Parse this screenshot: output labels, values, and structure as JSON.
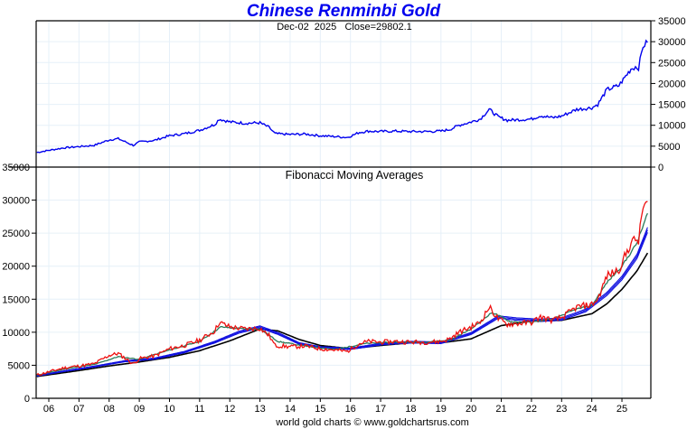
{
  "title": "Chinese Renminbi Gold",
  "footer": "world gold charts © www.goldchartsrus.com",
  "colors": {
    "title": "#0000ee",
    "price_upper": "#0000ee",
    "price_lower": "#ee1111",
    "fma_short": "#2a7a5a",
    "fma_mid": "#1010e0",
    "fma_long": "#000000",
    "grid": "#e6f0f8"
  },
  "chart_data": [
    {
      "type": "line",
      "panel": "upper",
      "subtitle": "Dec-02  2025   Close=29802.1",
      "date_label": "Dec-02  2025",
      "close_label": "Close=29802.1",
      "ylim": [
        0,
        35000
      ],
      "yticks": [
        "0",
        "5000",
        "10000",
        "15000",
        "20000",
        "25000",
        "30000",
        "35000"
      ],
      "yaxis_side": "right",
      "grid": true,
      "series": [
        {
          "name": "Close",
          "x": [
            2005.6,
            2006.0,
            2006.5,
            2007.0,
            2007.5,
            2008.0,
            2008.3,
            2008.8,
            2009.0,
            2009.5,
            2010.0,
            2010.5,
            2011.0,
            2011.5,
            2011.65,
            2012.0,
            2012.5,
            2013.0,
            2013.3,
            2013.5,
            2014.0,
            2014.5,
            2015.0,
            2015.5,
            2015.9,
            2016.3,
            2016.6,
            2017.0,
            2017.5,
            2018.0,
            2018.5,
            2019.0,
            2019.3,
            2019.6,
            2020.0,
            2020.3,
            2020.6,
            2020.9,
            2021.2,
            2021.5,
            2022.0,
            2022.3,
            2022.7,
            2023.0,
            2023.5,
            2024.0,
            2024.2,
            2024.5,
            2024.9,
            2025.0,
            2025.3,
            2025.45,
            2025.55,
            2025.7,
            2025.85
          ],
          "values": [
            3500,
            4000,
            4600,
            4900,
            5200,
            6500,
            6800,
            5200,
            6000,
            6400,
            7500,
            8000,
            8800,
            10200,
            11500,
            10800,
            10500,
            10600,
            9500,
            8000,
            7800,
            7900,
            7500,
            7300,
            7100,
            8300,
            8600,
            8500,
            8600,
            8500,
            8500,
            8600,
            9000,
            10000,
            10800,
            11500,
            13800,
            12000,
            11200,
            11300,
            11500,
            12300,
            11800,
            12200,
            13800,
            14200,
            15000,
            18500,
            19500,
            20500,
            23500,
            24000,
            23800,
            29000,
            29802.1
          ]
        }
      ]
    },
    {
      "type": "line",
      "panel": "lower",
      "title": "Fibonacci Moving Averages",
      "xlabel": "",
      "ylabel": "",
      "ylim": [
        0,
        35000
      ],
      "yticks": [
        "0",
        "5000",
        "10000",
        "15000",
        "20000",
        "25000",
        "30000",
        "35000"
      ],
      "yaxis_side": "left",
      "xticks": [
        "06",
        "07",
        "08",
        "09",
        "10",
        "11",
        "12",
        "13",
        "14",
        "15",
        "16",
        "17",
        "18",
        "19",
        "20",
        "21",
        "22",
        "23",
        "24",
        "25"
      ],
      "xlim": [
        2005.6,
        2025.95
      ],
      "grid": true,
      "series": [
        {
          "name": "Price",
          "x": [
            2005.6,
            2006.0,
            2006.5,
            2007.0,
            2007.5,
            2008.0,
            2008.3,
            2008.8,
            2009.0,
            2009.5,
            2010.0,
            2010.5,
            2011.0,
            2011.5,
            2011.65,
            2012.0,
            2012.5,
            2013.0,
            2013.3,
            2013.5,
            2014.0,
            2014.5,
            2015.0,
            2015.5,
            2015.9,
            2016.3,
            2016.6,
            2017.0,
            2017.5,
            2018.0,
            2018.5,
            2019.0,
            2019.3,
            2019.6,
            2020.0,
            2020.3,
            2020.6,
            2020.9,
            2021.2,
            2021.5,
            2022.0,
            2022.3,
            2022.7,
            2023.0,
            2023.5,
            2024.0,
            2024.2,
            2024.5,
            2024.9,
            2025.0,
            2025.3,
            2025.45,
            2025.55,
            2025.7,
            2025.85
          ],
          "values": [
            3500,
            4000,
            4600,
            4900,
            5200,
            6500,
            6800,
            5200,
            6000,
            6400,
            7500,
            8000,
            8800,
            10200,
            11500,
            10800,
            10500,
            10600,
            9500,
            8000,
            7800,
            7900,
            7500,
            7300,
            7100,
            8300,
            8600,
            8500,
            8600,
            8500,
            8500,
            8600,
            9000,
            10000,
            10800,
            11500,
            13800,
            12000,
            11200,
            11300,
            11500,
            12300,
            11800,
            12200,
            13800,
            14200,
            15000,
            18500,
            19500,
            20500,
            23500,
            24000,
            23800,
            29000,
            29802.1
          ]
        },
        {
          "name": "FMA short",
          "x": [
            2005.6,
            2006.5,
            2007.5,
            2008.3,
            2009.0,
            2010.0,
            2011.0,
            2011.7,
            2012.5,
            2013.0,
            2013.6,
            2014.5,
            2015.5,
            2016.5,
            2017.5,
            2018.5,
            2019.3,
            2020.0,
            2020.7,
            2021.3,
            2022.0,
            2022.7,
            2023.5,
            2024.0,
            2024.5,
            2025.0,
            2025.5,
            2025.85
          ],
          "values": [
            3500,
            4400,
            5100,
            6300,
            5900,
            7300,
            8600,
            10800,
            10500,
            10500,
            8600,
            7900,
            7400,
            8300,
            8500,
            8500,
            8800,
            10500,
            13000,
            11600,
            11500,
            12000,
            13500,
            14000,
            17500,
            20000,
            23500,
            28000
          ]
        },
        {
          "name": "FMA mid",
          "x": [
            2005.6,
            2006.5,
            2007.5,
            2008.5,
            2009.5,
            2010.5,
            2011.5,
            2012.3,
            2013.0,
            2013.6,
            2014.3,
            2015.0,
            2016.0,
            2017.0,
            2018.0,
            2019.0,
            2020.0,
            2020.9,
            2021.5,
            2022.3,
            2023.0,
            2023.8,
            2024.5,
            2025.0,
            2025.5,
            2025.85
          ],
          "values": [
            3400,
            4100,
            4800,
            5600,
            6000,
            7000,
            8500,
            10000,
            10800,
            9800,
            8300,
            7700,
            7500,
            8200,
            8500,
            8400,
            9800,
            12300,
            12000,
            11800,
            12000,
            13300,
            15800,
            18200,
            21500,
            25500
          ]
        },
        {
          "name": "FMA long",
          "x": [
            2005.6,
            2007.0,
            2008.0,
            2009.0,
            2010.0,
            2011.0,
            2012.0,
            2013.0,
            2013.6,
            2014.3,
            2015.0,
            2016.0,
            2017.0,
            2018.0,
            2019.0,
            2020.0,
            2021.0,
            2022.0,
            2023.0,
            2024.0,
            2024.5,
            2025.0,
            2025.5,
            2025.85
          ],
          "values": [
            3300,
            4200,
            4900,
            5500,
            6200,
            7200,
            8700,
            10500,
            10200,
            8900,
            8000,
            7500,
            8000,
            8400,
            8400,
            9000,
            11000,
            11700,
            11800,
            12800,
            14300,
            16500,
            19300,
            22000
          ]
        }
      ]
    }
  ]
}
